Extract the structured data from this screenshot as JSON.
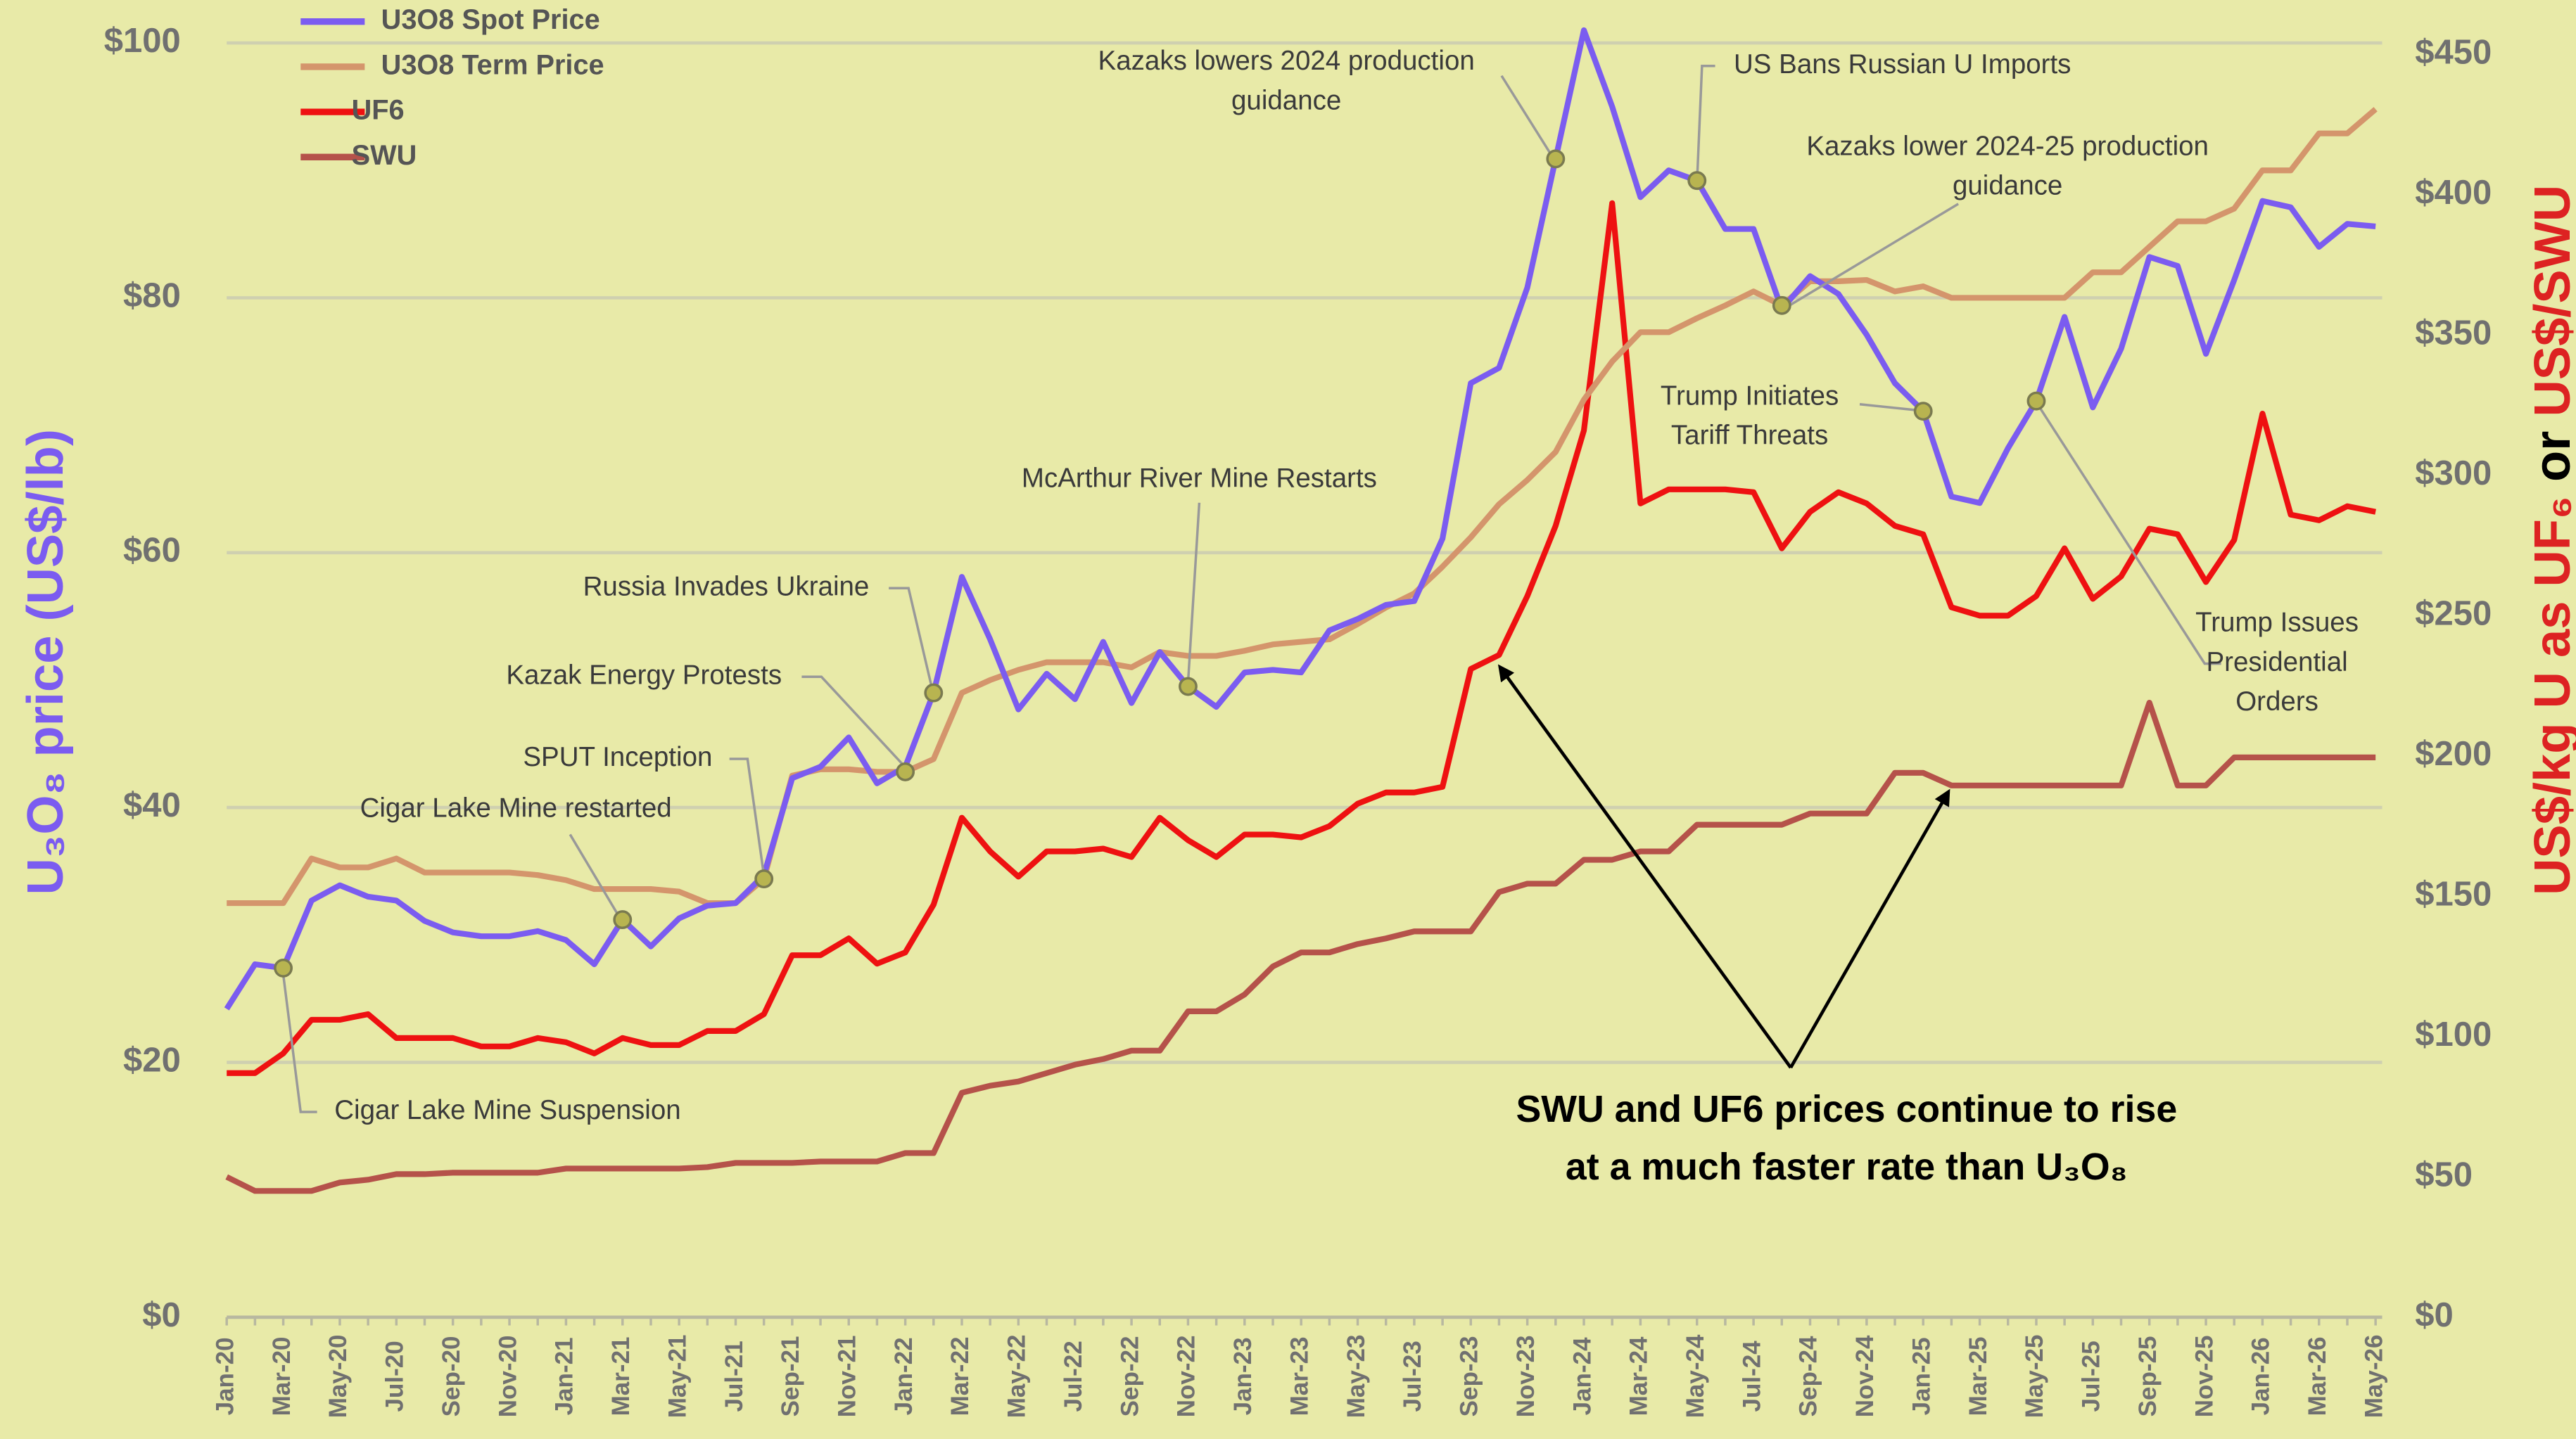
{
  "chart_data": {
    "type": "line",
    "y_label": "U₃O₈ price (US$/lb)",
    "y2_label": [
      "US$/kg U as UF₆",
      "or",
      "US$/SWU"
    ],
    "categories": [
      "Jan-20",
      null,
      "Mar-20",
      null,
      "May-20",
      null,
      "Jul-20",
      null,
      "Sep-20",
      null,
      "Nov-20",
      null,
      "Jan-21",
      null,
      "Mar-21",
      null,
      "May-21",
      null,
      "Jul-21",
      null,
      "Sep-21",
      null,
      "Nov-21",
      null,
      "Jan-22",
      null,
      "Mar-22",
      null,
      "May-22",
      null,
      "Jul-22",
      null,
      "Sep-22",
      null,
      "Nov-22",
      null,
      "Jan-23",
      null,
      "Mar-23",
      null,
      "May-23",
      null,
      "Jul-23",
      null,
      "Sep-23",
      null,
      "Nov-23",
      null,
      "Jan-24",
      null,
      "Mar-24",
      null,
      "May-24",
      null,
      "Jul-24",
      null,
      "Sep-24",
      null,
      "Nov-24",
      null,
      "Jan-25",
      null,
      "Mar-25",
      null,
      "May-25",
      null,
      "Jul-25",
      null,
      "Sep-25",
      null,
      "Nov-25",
      null,
      "Jan-26",
      null,
      "Mar-26",
      null,
      "May-26"
    ],
    "series": [
      {
        "name": "U3O8 Spot Price",
        "color": "#7b5cf0",
        "axis": "y",
        "values": [
          24.2,
          27.7,
          27.4,
          32.7,
          33.9,
          33,
          32.7,
          31.1,
          30.2,
          29.9,
          29.9,
          30.3,
          29.6,
          27.7,
          31.2,
          29.1,
          31.3,
          32.3,
          32.5,
          34.7,
          42.3,
          43.2,
          45.5,
          41.9,
          43.2,
          49,
          58.1,
          53.2,
          47.7,
          50.5,
          48.5,
          53,
          48.2,
          52.2,
          49.5,
          47.9,
          50.6,
          50.8,
          50.6,
          53.9,
          54.8,
          55.9,
          56.2,
          61.1,
          73.3,
          74.5,
          80.8,
          90.9,
          101,
          95,
          87.9,
          90,
          89.2,
          85.4,
          85.4,
          79.1,
          81.7,
          80.3,
          77.1,
          73.3,
          71.1,
          64.4,
          63.9,
          68.2,
          71.9,
          78.5,
          71.4,
          76,
          83.2,
          82.5,
          75.6,
          81.4,
          87.6,
          87.1,
          84,
          85.8,
          85.6
        ]
      },
      {
        "name": "U3O8 Term Price",
        "color": "#d4956c",
        "axis": "y",
        "values": [
          32.5,
          32.5,
          32.5,
          36,
          35.3,
          35.3,
          36,
          34.9,
          34.9,
          34.9,
          34.9,
          34.7,
          34.3,
          33.6,
          33.6,
          33.6,
          33.4,
          32.5,
          32.5,
          34.4,
          42.5,
          43,
          43,
          42.8,
          42.8,
          43.8,
          49,
          50,
          50.8,
          51.4,
          51.4,
          51.4,
          51,
          52.2,
          51.9,
          51.9,
          52.3,
          52.8,
          53,
          53.2,
          54.4,
          55.7,
          56.8,
          58.9,
          61.2,
          63.8,
          65.7,
          67.9,
          72,
          75,
          77.3,
          77.3,
          78.4,
          79.4,
          80.5,
          79.4,
          81.3,
          81.3,
          81.4,
          80.5,
          80.9,
          80,
          80,
          80,
          80,
          80,
          82,
          82,
          84,
          86,
          86,
          87,
          90,
          90,
          92.9,
          92.9,
          94.8
        ]
      },
      {
        "name": "UF6",
        "color": "#ee1111",
        "axis": "y2",
        "values": [
          87,
          87,
          94,
          106,
          106,
          108,
          99.5,
          99.5,
          99.5,
          96.5,
          96.5,
          99.5,
          98,
          94,
          99.5,
          97,
          97,
          102,
          102,
          108,
          129,
          129,
          135,
          126,
          130,
          147,
          178,
          166,
          157,
          166,
          166,
          167,
          164,
          178,
          170,
          164,
          172,
          172,
          171,
          175,
          183,
          187,
          187,
          189,
          231,
          236,
          257,
          282,
          316,
          397,
          290,
          295,
          295,
          295,
          294,
          274,
          287,
          294,
          290,
          282,
          279,
          253,
          250,
          250,
          257,
          274,
          256,
          264,
          281,
          279,
          262,
          277,
          322,
          286,
          284,
          289,
          287
        ]
      },
      {
        "name": "SWU",
        "color": "#b5524a",
        "axis": "y2",
        "values": [
          50,
          45,
          45,
          45,
          48,
          49,
          51,
          51,
          51.5,
          51.5,
          51.5,
          51.5,
          53,
          53,
          53,
          53,
          53,
          53.5,
          55,
          55,
          55,
          55.5,
          55.5,
          55.5,
          58.5,
          58.5,
          80,
          82.5,
          84,
          87,
          90,
          92,
          95,
          95,
          109,
          109,
          115,
          125,
          130,
          130,
          133,
          135,
          137.5,
          137.5,
          137.5,
          151.5,
          154.5,
          154.5,
          163,
          163,
          166,
          166,
          175.5,
          175.5,
          175.5,
          175.5,
          179.5,
          179.5,
          179.5,
          194,
          194,
          189.5,
          189.5,
          189.5,
          189.5,
          189.5,
          189.5,
          189.5,
          219,
          189.5,
          189.5,
          199.5,
          199.5,
          199.5,
          199.5,
          199.5,
          199.5
        ]
      }
    ],
    "ylim": [
      0,
      100
    ],
    "yticks": [
      {
        "value": 0,
        "label": "$0"
      },
      {
        "value": 20,
        "label": "$20"
      },
      {
        "value": 40,
        "label": "$40"
      },
      {
        "value": 60,
        "label": "$60"
      },
      {
        "value": 80,
        "label": "$80"
      },
      {
        "value": 100,
        "label": "$100"
      }
    ],
    "y2lim": [
      0,
      450
    ],
    "y2ticks": [
      {
        "value": 0,
        "label": "$0"
      },
      {
        "value": 50,
        "label": "$50"
      },
      {
        "value": 100,
        "label": "$100"
      },
      {
        "value": 150,
        "label": "$150"
      },
      {
        "value": 200,
        "label": "$200"
      },
      {
        "value": 250,
        "label": "$250"
      },
      {
        "value": 300,
        "label": "$300"
      },
      {
        "value": 350,
        "label": "$350"
      },
      {
        "value": 400,
        "label": "$400"
      },
      {
        "value": 450,
        "label": "$450"
      }
    ],
    "grid": true,
    "legend": "top-left",
    "annotations": [
      {
        "text": [
          "Cigar Lake Mine Suspension"
        ]
      },
      {
        "text": [
          "Cigar Lake Mine restarted"
        ]
      },
      {
        "text": [
          "SPUT Inception"
        ]
      },
      {
        "text": [
          "Kazak Energy Protests"
        ]
      },
      {
        "text": [
          "Russia Invades Ukraine"
        ]
      },
      {
        "text": [
          "McArthur River Mine Restarts"
        ]
      },
      {
        "text": [
          "Kazaks lowers 2024 production",
          "guidance"
        ]
      },
      {
        "text": [
          "US Bans Russian U Imports"
        ]
      },
      {
        "text": [
          "Kazaks lower 2024-25 production",
          "guidance"
        ]
      },
      {
        "text": [
          "Trump Initiates",
          "Tariff Threats"
        ]
      },
      {
        "text": [
          "Trump Issues",
          "Presidential",
          "Orders"
        ]
      }
    ],
    "callout": [
      "SWU and UF6 prices continue to rise",
      "at a much faster rate than U₃O₈"
    ]
  }
}
